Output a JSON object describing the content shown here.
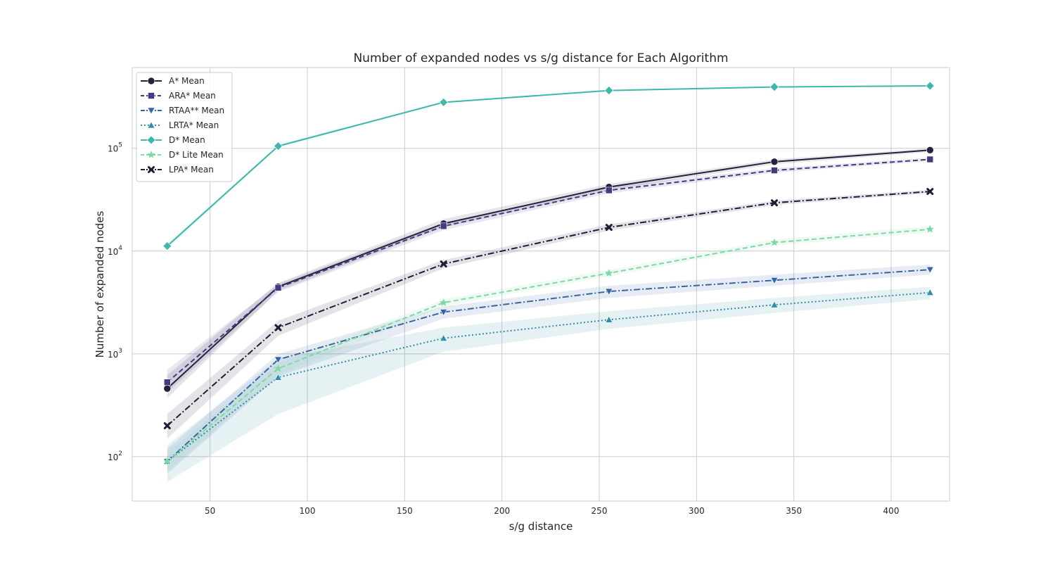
{
  "chart_data": {
    "type": "line",
    "title": "Number of expanded nodes vs s/g distance for Each Algorithm",
    "xlabel": "s/g distance",
    "ylabel": "Number of expanded nodes",
    "x_scale": "linear",
    "y_scale": "log",
    "xlim": [
      10,
      430
    ],
    "ylim": [
      37,
      610000
    ],
    "x_ticks": [
      50,
      100,
      150,
      200,
      250,
      300,
      350,
      400
    ],
    "y_ticks": [
      {
        "value": 100,
        "base": "10",
        "exp": "2"
      },
      {
        "value": 1000,
        "base": "10",
        "exp": "3"
      },
      {
        "value": 10000,
        "base": "10",
        "exp": "4"
      },
      {
        "value": 100000,
        "base": "10",
        "exp": "5"
      }
    ],
    "grid": true,
    "legend_position": "top-left",
    "x": [
      28,
      85,
      170,
      255,
      340,
      420
    ],
    "series": [
      {
        "name": "A* Mean",
        "color": "#2a1f3d",
        "dash": "solid",
        "marker": "circle",
        "values": [
          460,
          4500,
          18500,
          42000,
          74000,
          96000
        ],
        "band_low": [
          370,
          4100,
          17000,
          39000,
          70000,
          92000
        ],
        "band_high": [
          620,
          4900,
          20500,
          45000,
          78000,
          100000
        ]
      },
      {
        "name": "ARA* Mean",
        "color": "#3f3d80",
        "dash": "dashed",
        "marker": "square",
        "values": [
          530,
          4400,
          17500,
          39000,
          61000,
          78000
        ],
        "band_low": [
          420,
          4000,
          16000,
          36500,
          58000,
          75000
        ],
        "band_high": [
          700,
          4800,
          19000,
          42000,
          64000,
          81000
        ]
      },
      {
        "name": "RTAA** Mean",
        "color": "#3765a4",
        "dash": "dashdot",
        "marker": "triangle-down",
        "values": [
          90,
          880,
          2550,
          4050,
          5200,
          6600
        ],
        "band_low": [
          68,
          600,
          2200,
          3500,
          4600,
          5900
        ],
        "band_high": [
          120,
          1000,
          2900,
          4600,
          5900,
          7400
        ]
      },
      {
        "name": "LRTA* Mean",
        "color": "#2f8fa6",
        "dash": "dotted",
        "marker": "triangle-up",
        "values": [
          90,
          590,
          1420,
          2150,
          3000,
          3950
        ],
        "band_low": [
          57,
          260,
          1050,
          1750,
          2500,
          3400
        ],
        "band_high": [
          130,
          900,
          1800,
          2600,
          3500,
          4500
        ]
      },
      {
        "name": "D* Mean",
        "color": "#3eb8ac",
        "dash": "solid",
        "marker": "diamond",
        "values": [
          11200,
          105000,
          280000,
          365000,
          395000,
          405000
        ],
        "band_low": [
          10600,
          102000,
          276000,
          361000,
          391000,
          401000
        ],
        "band_high": [
          11800,
          108000,
          284000,
          369000,
          399000,
          409000
        ]
      },
      {
        "name": "D* Lite Mean",
        "color": "#7ed9a3",
        "dash": "dashed",
        "marker": "star",
        "values": [
          90,
          720,
          3150,
          6100,
          12100,
          16300
        ],
        "band_low": [
          72,
          620,
          2900,
          5700,
          11300,
          15200
        ],
        "band_high": [
          110,
          820,
          3400,
          6600,
          13000,
          17600
        ]
      },
      {
        "name": "LPA* Mean",
        "color": "#221c36",
        "dash": "dashdot",
        "marker": "x",
        "values": [
          200,
          1800,
          7500,
          17000,
          29500,
          38000
        ],
        "band_low": [
          150,
          1500,
          6800,
          15800,
          28000,
          36500
        ],
        "band_high": [
          260,
          2100,
          8200,
          18200,
          31000,
          39500
        ]
      }
    ]
  }
}
